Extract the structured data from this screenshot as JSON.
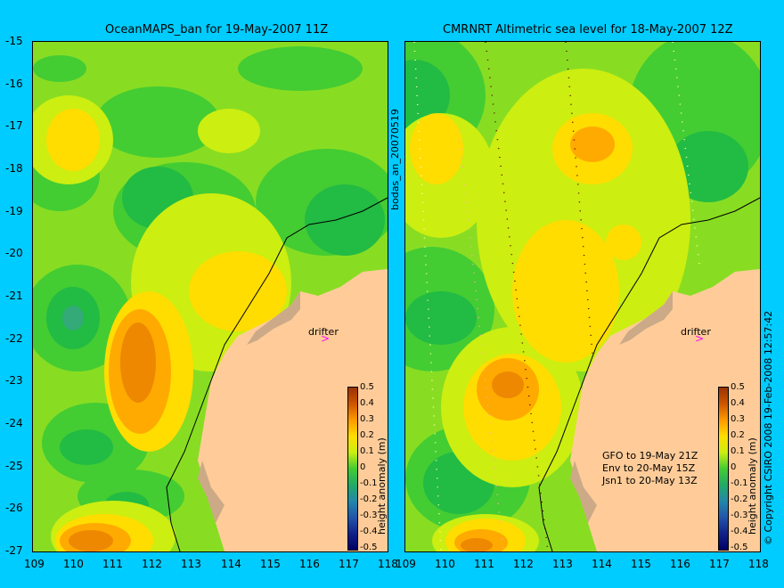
{
  "left_map": {
    "title": "OceanMAPS_ban for 19-May-2007 11Z",
    "side_label": "bodas_an_20070519"
  },
  "right_map": {
    "title": "CMRNRT Altimetric sea level  for 18-May-2007 12Z",
    "notes": [
      "GFO to 19-May 21Z",
      "Env to 20-May 15Z",
      "Jsn1 to 20-May 13Z"
    ]
  },
  "drifter_label": "drifter",
  "y_ticks": [
    "-15",
    "-16",
    "-17",
    "-18",
    "-19",
    "-20",
    "-21",
    "-22",
    "-23",
    "-24",
    "-25",
    "-26",
    "-27"
  ],
  "x_ticks": [
    "109",
    "110",
    "111",
    "112",
    "113",
    "114",
    "115",
    "116",
    "117",
    "118"
  ],
  "colorbar": {
    "ticks": [
      "0.5",
      "0.4",
      "0.3",
      "0.2",
      "0.1",
      "0",
      "-0.1",
      "-0.2",
      "-0.3",
      "-0.4",
      "-0.5"
    ],
    "label": "height anomaly (m)"
  },
  "copyright": "© Copyright CSIRO 2008  19-Feb-2008 12:57:42",
  "colors": {
    "background": "#00ccff",
    "land": "#ffcc99",
    "drifter": "#ff00ff"
  }
}
